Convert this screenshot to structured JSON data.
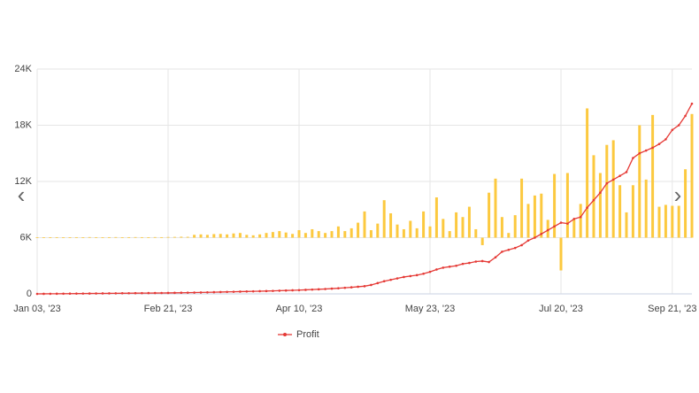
{
  "chart_data": {
    "type": "combo",
    "categories": [
      "Jan 03, '23",
      null,
      null,
      null,
      null,
      null,
      null,
      null,
      null,
      null,
      null,
      null,
      null,
      null,
      null,
      null,
      null,
      null,
      null,
      null,
      "Feb 21, '23",
      null,
      null,
      null,
      null,
      null,
      null,
      null,
      null,
      null,
      null,
      null,
      null,
      null,
      null,
      null,
      null,
      null,
      null,
      null,
      "Apr 10, '23",
      null,
      null,
      null,
      null,
      null,
      null,
      null,
      null,
      null,
      null,
      null,
      null,
      null,
      null,
      null,
      null,
      null,
      null,
      null,
      "May 23, '23",
      null,
      null,
      null,
      null,
      null,
      null,
      null,
      null,
      null,
      null,
      null,
      null,
      null,
      null,
      null,
      null,
      null,
      null,
      null,
      "Jul 20, '23",
      null,
      null,
      null,
      null,
      null,
      null,
      null,
      null,
      null,
      null,
      null,
      null,
      null,
      null,
      null,
      null,
      "Sep 21, '23",
      null,
      null,
      null
    ],
    "bar_base": 6000,
    "series": [
      {
        "type": "bar",
        "color": "#fcc93f",
        "values": [
          6030,
          6040,
          6030,
          6050,
          6040,
          6030,
          6050,
          6040,
          6060,
          6050,
          6040,
          6050,
          6060,
          6040,
          6050,
          6060,
          6050,
          6040,
          6060,
          6050,
          6070,
          6080,
          6100,
          6090,
          6300,
          6350,
          6300,
          6380,
          6400,
          6350,
          6450,
          6500,
          6300,
          6250,
          6350,
          6500,
          6600,
          6700,
          6550,
          6400,
          6800,
          6500,
          6900,
          6700,
          6500,
          6700,
          7200,
          6700,
          7000,
          7600,
          8800,
          6800,
          7500,
          10000,
          8600,
          7400,
          6900,
          7800,
          7000,
          8800,
          7200,
          10300,
          8000,
          6700,
          8700,
          8200,
          9300,
          6900,
          5200,
          10800,
          12300,
          8200,
          6500,
          8400,
          12300,
          9600,
          10500,
          10700,
          7900,
          12800,
          2500,
          12900,
          7900,
          9600,
          19800,
          14800,
          12900,
          15900,
          16400,
          11600,
          8700,
          11600,
          18000,
          12200,
          19100,
          9300,
          9500,
          9400,
          9400,
          13300,
          19200
        ]
      },
      {
        "type": "line",
        "name": "Profit",
        "color": "#e53935",
        "values": [
          0,
          5,
          10,
          15,
          20,
          25,
          30,
          35,
          40,
          45,
          50,
          55,
          60,
          65,
          70,
          75,
          80,
          85,
          90,
          95,
          100,
          110,
          120,
          130,
          140,
          150,
          165,
          180,
          195,
          210,
          225,
          240,
          255,
          270,
          285,
          300,
          320,
          340,
          360,
          380,
          400,
          430,
          460,
          490,
          520,
          560,
          600,
          650,
          700,
          760,
          820,
          950,
          1150,
          1350,
          1500,
          1650,
          1800,
          1900,
          2000,
          2150,
          2350,
          2600,
          2800,
          2900,
          3000,
          3200,
          3300,
          3450,
          3500,
          3400,
          3900,
          4500,
          4700,
          4900,
          5200,
          5700,
          6000,
          6400,
          6800,
          7200,
          7600,
          7500,
          8000,
          8200,
          9200,
          10000,
          10800,
          11800,
          12200,
          12600,
          13000,
          14500,
          15000,
          15300,
          15600,
          16000,
          16500,
          17500,
          18000,
          19000,
          20300
        ]
      }
    ],
    "ylim": [
      0,
      24000
    ],
    "yticks": [
      0,
      {
        "value": 6000,
        "label": "6K"
      },
      {
        "value": 12000,
        "label": "12K"
      },
      {
        "value": 18000,
        "label": "18K"
      },
      {
        "value": 24000,
        "label": "24K"
      }
    ],
    "grid": true
  }
}
